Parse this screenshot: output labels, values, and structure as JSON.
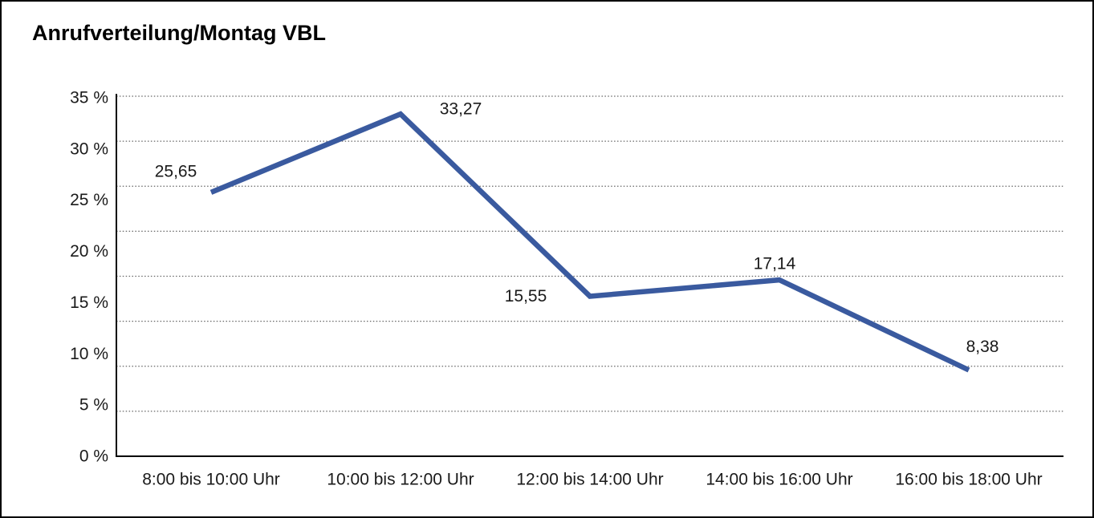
{
  "window": {
    "background_color": "#ffffff",
    "border_color": "#000000"
  },
  "chart_data": {
    "type": "line",
    "title": "Anrufverteilung/Montag VBL",
    "categories": [
      "8:00 bis 10:00 Uhr",
      "10:00 bis 12:00 Uhr",
      "12:00 bis 14:00 Uhr",
      "14:00 bis 16:00 Uhr",
      "16:00 bis 18:00 Uhr"
    ],
    "values": [
      25.65,
      33.27,
      15.55,
      17.14,
      8.38
    ],
    "value_labels": [
      "25,65",
      "33,27",
      "15,55",
      "17,14",
      "8,38"
    ],
    "y_ticks": [
      "35 %",
      "30 %",
      "25 %",
      "20 %",
      "15 %",
      "10 %",
      "5 %",
      "0 %"
    ],
    "ylim": [
      0,
      35
    ],
    "xlabel": "",
    "ylabel": "",
    "legend": "none",
    "grid": "horizontal-dotted",
    "line_color": "#3A5A9F",
    "grid_color": "#666666",
    "axis_color": "#000000",
    "text_color": "#1a1a1a"
  }
}
